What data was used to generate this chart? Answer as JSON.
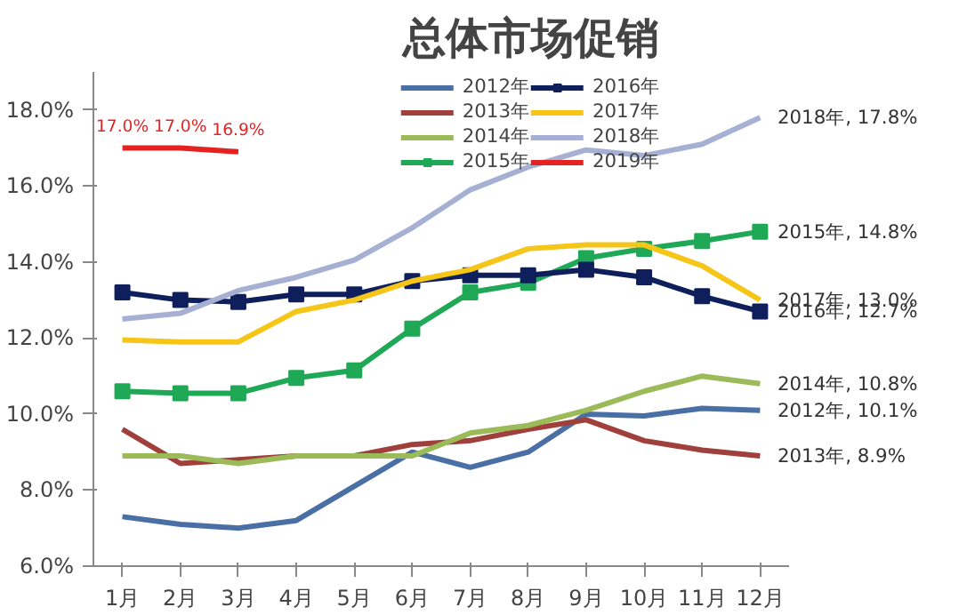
{
  "chart_data": {
    "type": "line",
    "title": "总体市场促销",
    "categories": [
      "1月",
      "2月",
      "3月",
      "4月",
      "5月",
      "6月",
      "7月",
      "8月",
      "9月",
      "10月",
      "11月",
      "12月"
    ],
    "ylim": [
      6,
      19
    ],
    "yticks": [
      {
        "value": 6,
        "label": "6.0%"
      },
      {
        "value": 8,
        "label": "8.0%"
      },
      {
        "value": 10,
        "label": "10.0%"
      },
      {
        "value": 12,
        "label": "12.0%"
      },
      {
        "value": 14,
        "label": "14.0%"
      },
      {
        "value": 16,
        "label": "16.0%"
      },
      {
        "value": 18,
        "label": "18.0%"
      }
    ],
    "grid": false,
    "legend": "top",
    "line_style": "solid",
    "series": [
      {
        "name": "2012年",
        "color": "#4a6fa5",
        "values": [
          7.3,
          7.1,
          7.0,
          7.2,
          8.1,
          9.0,
          8.6,
          9.0,
          10.0,
          9.95,
          10.15,
          10.1
        ],
        "value_labels": [
          null,
          null,
          null,
          null,
          null,
          null,
          null,
          null,
          null,
          null,
          null,
          "2012年, 10.1%"
        ]
      },
      {
        "name": "2013年",
        "color": "#a0403c",
        "values": [
          9.6,
          8.7,
          8.8,
          8.9,
          8.9,
          9.2,
          9.3,
          9.6,
          9.85,
          9.3,
          9.05,
          8.9
        ],
        "value_labels": [
          null,
          null,
          null,
          null,
          null,
          null,
          null,
          null,
          null,
          null,
          null,
          "2013年, 8.9%"
        ]
      },
      {
        "name": "2014年",
        "color": "#9bbb59",
        "values": [
          8.9,
          8.9,
          8.7,
          8.9,
          8.9,
          8.9,
          9.5,
          9.7,
          10.1,
          10.6,
          11.0,
          10.8
        ],
        "value_labels": [
          null,
          null,
          null,
          null,
          null,
          null,
          null,
          null,
          null,
          null,
          null,
          "2014年, 10.8%"
        ]
      },
      {
        "name": "2015年",
        "color": "#1fa855",
        "marker": "square",
        "values": [
          10.6,
          10.55,
          10.55,
          10.95,
          11.15,
          12.25,
          13.2,
          13.45,
          14.1,
          14.35,
          14.55,
          14.8
        ],
        "value_labels": [
          null,
          null,
          null,
          null,
          null,
          null,
          null,
          null,
          null,
          null,
          null,
          "2015年, 14.8%"
        ]
      },
      {
        "name": "2016年",
        "color": "#0f1f5c",
        "marker": "square",
        "values": [
          13.2,
          13.0,
          12.95,
          13.15,
          13.15,
          13.5,
          13.65,
          13.65,
          13.8,
          13.6,
          13.1,
          12.7
        ],
        "value_labels": [
          null,
          null,
          null,
          null,
          null,
          null,
          null,
          null,
          null,
          null,
          null,
          "2016年, 12.7%"
        ]
      },
      {
        "name": "2017年",
        "color": "#f5c518",
        "values": [
          11.95,
          11.9,
          11.9,
          12.7,
          13.0,
          13.5,
          13.8,
          14.35,
          14.45,
          14.45,
          13.9,
          13.0
        ],
        "value_labels": [
          null,
          null,
          null,
          null,
          null,
          null,
          null,
          null,
          null,
          null,
          null,
          "2017年, 13.0%"
        ]
      },
      {
        "name": "2018年",
        "color": "#a6b0d2",
        "values": [
          12.5,
          12.65,
          13.25,
          13.6,
          14.05,
          14.9,
          15.9,
          16.5,
          16.95,
          16.8,
          17.1,
          17.8
        ],
        "value_labels": [
          null,
          null,
          null,
          null,
          null,
          null,
          null,
          null,
          null,
          null,
          null,
          "2018年, 17.8%"
        ]
      },
      {
        "name": "2019年",
        "color": "#e52222",
        "values": [
          17.0,
          17.0,
          16.9,
          null,
          null,
          null,
          null,
          null,
          null,
          null,
          null,
          null
        ],
        "value_labels": [
          "17.0%",
          "17.0%",
          "16.9%",
          null,
          null,
          null,
          null,
          null,
          null,
          null,
          null,
          null
        ]
      }
    ]
  }
}
